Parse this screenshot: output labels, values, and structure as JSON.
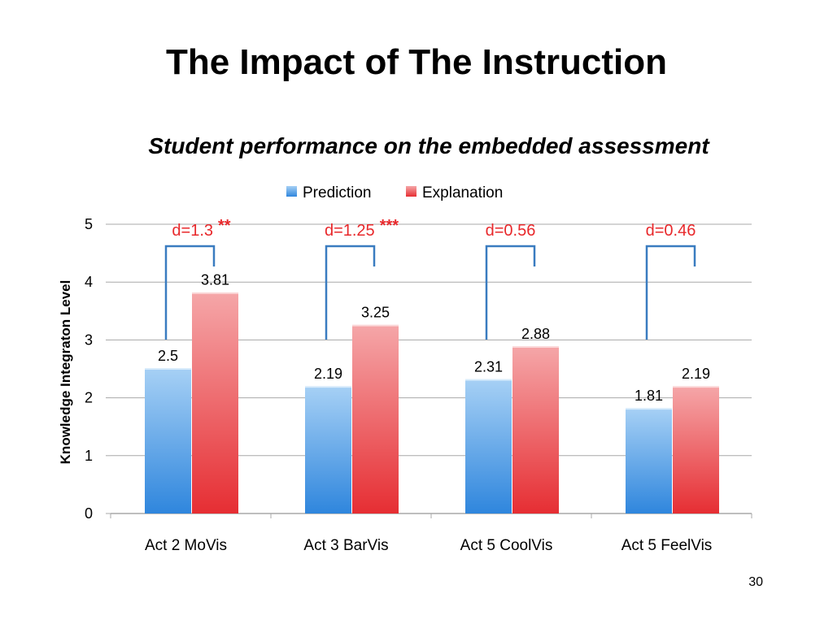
{
  "slide": {
    "title": "The Impact of The Instruction",
    "subtitle": "Student performance on the embedded assessment",
    "page_number": "30"
  },
  "colors": {
    "prediction": "#3d8fdc",
    "explanation": "#e8363a",
    "annotation": "#e8282b",
    "bracket": "#3a7cc0",
    "grid": "#a8a8a8"
  },
  "chart_data": {
    "type": "bar",
    "categories": [
      "Act 2 MoVis",
      "Act 3 BarVis",
      "Act 5 CoolVis",
      "Act 5 FeelVis"
    ],
    "series": [
      {
        "name": "Prediction",
        "values": [
          2.5,
          2.19,
          2.31,
          1.81
        ],
        "labels": [
          "2.5",
          "2.19",
          "2.31",
          "1.81"
        ]
      },
      {
        "name": "Explanation",
        "values": [
          3.81,
          3.25,
          2.88,
          2.19
        ],
        "labels": [
          "3.81",
          "3.25",
          "2.88",
          "2.19"
        ]
      }
    ],
    "ylabel": "Knowledge Integraton Level",
    "xlabel": "",
    "ylim": [
      0,
      5
    ],
    "yticks": [
      "0",
      "1",
      "2",
      "3",
      "4",
      "5"
    ],
    "grid": true,
    "legend": "top-center",
    "annotations": [
      {
        "text": "d=1.3",
        "stars": "**"
      },
      {
        "text": "d=1.25",
        "stars": "***"
      },
      {
        "text": "d=0.56",
        "stars": ""
      },
      {
        "text": "d=0.46",
        "stars": ""
      }
    ]
  }
}
